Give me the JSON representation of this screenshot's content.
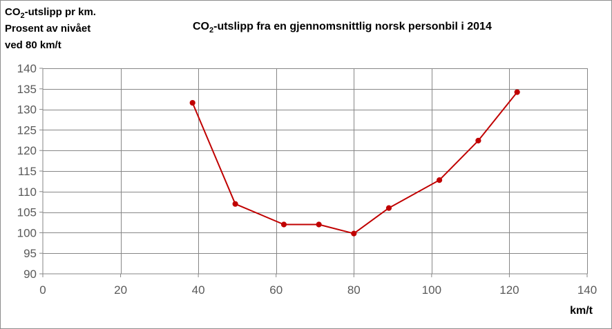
{
  "chart_data": {
    "type": "line",
    "title_prefix": "CO",
    "title_sub": "2",
    "title_rest": "-utslipp  fra en gjennomsnittlig  norsk personbil  i 2014",
    "ylabel_line1_prefix": "CO",
    "ylabel_line1_sub": "2",
    "ylabel_line1_rest": "-utslipp pr km.",
    "ylabel_line2": "Prosent av nivået",
    "ylabel_line3": "ved 80 km/t",
    "xlabel": "km/t",
    "xlim": [
      0,
      140
    ],
    "ylim": [
      90,
      140
    ],
    "x_ticks": [
      0,
      20,
      40,
      60,
      80,
      100,
      120,
      140
    ],
    "y_ticks": [
      90,
      95,
      100,
      105,
      110,
      115,
      120,
      125,
      130,
      135,
      140
    ],
    "x_tick_labels": [
      "0",
      "20",
      "40",
      "60",
      "80",
      "100",
      "120",
      "140"
    ],
    "y_tick_labels": [
      "90",
      "95",
      "100",
      "105",
      "110",
      "115",
      "120",
      "125",
      "130",
      "135",
      "140"
    ],
    "grid": true,
    "series": [
      {
        "x": [
          38.5,
          49.5,
          62,
          71,
          80,
          89,
          102,
          112,
          122
        ],
        "y": [
          131.6,
          107,
          102,
          102,
          99.8,
          106,
          112.8,
          122.4,
          134.2
        ],
        "color": "#c00000"
      }
    ]
  }
}
